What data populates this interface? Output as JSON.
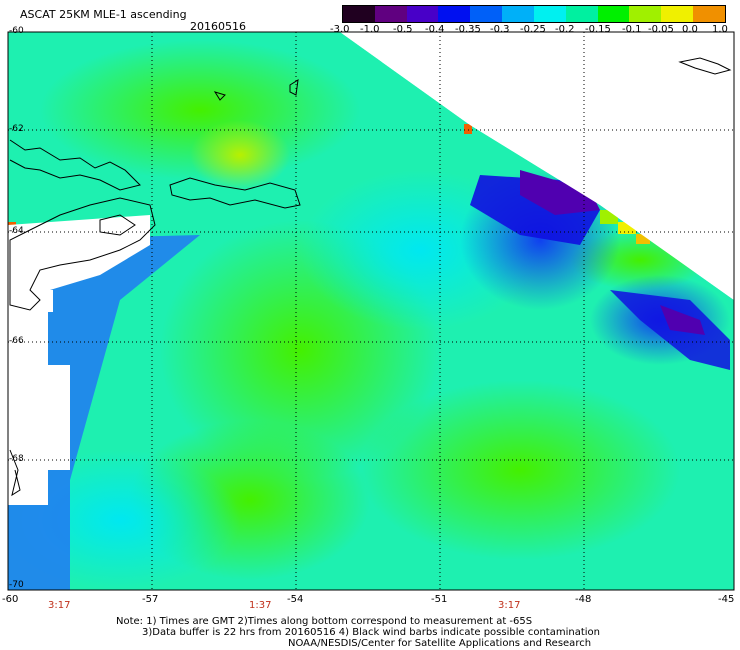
{
  "header": {
    "title": "ASCAT 25KM MLE-1 ascending",
    "date": "20160516"
  },
  "colorbar": {
    "ticks": [
      "-3.0",
      "-1.0",
      "-0.5",
      "-0.4",
      "-0.35",
      "-0.3",
      "-0.25",
      "-0.2",
      "-0.15",
      "-0.1",
      "-0.05",
      "0.0",
      "1.0"
    ],
    "colors": [
      "#200020",
      "#600080",
      "#4800c8",
      "#0010f0",
      "#0060f8",
      "#00b0f8",
      "#00f0f0",
      "#00f0a0",
      "#00f000",
      "#a0f000",
      "#f0f000",
      "#f09000",
      "#f02000"
    ]
  },
  "axes": {
    "lat_labels": [
      "-60",
      "-62",
      "-64",
      "-66",
      "-68",
      "-70"
    ],
    "lon_labels": [
      "-60",
      "-57",
      "-54",
      "-51",
      "-48",
      "-45"
    ]
  },
  "times": [
    "3:17",
    "1:37",
    "3:17"
  ],
  "notes": {
    "line1": "Note: 1) Times are GMT 2)Times along bottom correspond to measurement at -65S",
    "line2": "3)Data buffer is 22 hrs from 20160516 4) Black wind barbs indicate possible contamination",
    "line3": "NOAA/NESDIS/Center for Satellite Applications and Research"
  }
}
